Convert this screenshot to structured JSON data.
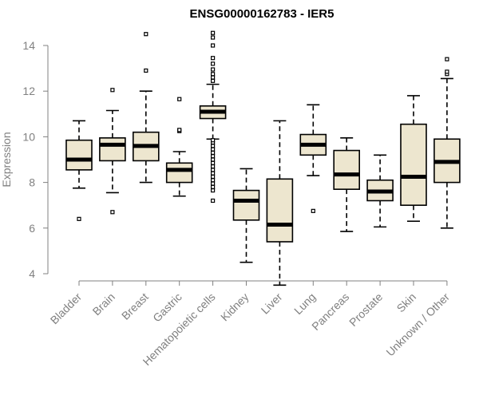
{
  "chart_data": {
    "type": "boxplot",
    "title": "ENSG00000162783 - IER5",
    "ylabel": "Expression",
    "xlabel": "",
    "ylim": [
      3.4,
      14.5
    ],
    "yticks": [
      4,
      6,
      8,
      10,
      12,
      14
    ],
    "box_color": "#ede6cf",
    "categories": [
      "Bladder",
      "Brain",
      "Breast",
      "Gastric",
      "Hematopoietic cells",
      "Kidney",
      "Liver",
      "Lung",
      "Pancreas",
      "Prostate",
      "Skin",
      "Unknown / Other"
    ],
    "boxes": [
      {
        "whisker_low": 7.75,
        "q1": 8.55,
        "median": 9.0,
        "q3": 9.85,
        "whisker_high": 10.7,
        "outliers": [
          6.4
        ]
      },
      {
        "whisker_low": 7.55,
        "q1": 8.95,
        "median": 9.65,
        "q3": 9.95,
        "whisker_high": 11.15,
        "outliers": [
          6.7,
          12.05
        ]
      },
      {
        "whisker_low": 8.0,
        "q1": 8.95,
        "median": 9.6,
        "q3": 10.2,
        "whisker_high": 12.0,
        "outliers": [
          12.9,
          14.5
        ]
      },
      {
        "whisker_low": 7.4,
        "q1": 8.0,
        "median": 8.55,
        "q3": 8.85,
        "whisker_high": 9.35,
        "outliers": [
          10.25,
          10.3,
          11.65
        ]
      },
      {
        "whisker_low": 9.9,
        "q1": 10.8,
        "median": 11.1,
        "q3": 11.35,
        "whisker_high": 12.3,
        "outliers": [
          7.2,
          7.65,
          7.8,
          7.95,
          8.1,
          8.25,
          8.4,
          8.55,
          8.7,
          8.85,
          9.0,
          9.15,
          9.3,
          9.45,
          9.6,
          9.75,
          9.85,
          12.45,
          12.6,
          12.75,
          12.95,
          13.2,
          13.45,
          14.0,
          14.35,
          14.55
        ]
      },
      {
        "whisker_low": 4.5,
        "q1": 6.35,
        "median": 7.2,
        "q3": 7.65,
        "whisker_high": 8.6,
        "outliers": []
      },
      {
        "whisker_low": 3.5,
        "q1": 5.4,
        "median": 6.15,
        "q3": 8.15,
        "whisker_high": 10.7,
        "outliers": []
      },
      {
        "whisker_low": 8.3,
        "q1": 9.2,
        "median": 9.65,
        "q3": 10.1,
        "whisker_high": 11.4,
        "outliers": [
          6.75
        ]
      },
      {
        "whisker_low": 5.85,
        "q1": 7.7,
        "median": 8.35,
        "q3": 9.4,
        "whisker_high": 9.95,
        "outliers": []
      },
      {
        "whisker_low": 6.05,
        "q1": 7.2,
        "median": 7.6,
        "q3": 8.1,
        "whisker_high": 9.2,
        "outliers": []
      },
      {
        "whisker_low": 6.3,
        "q1": 7.0,
        "median": 8.25,
        "q3": 10.55,
        "whisker_high": 11.8,
        "outliers": []
      },
      {
        "whisker_low": 6.0,
        "q1": 8.0,
        "median": 8.9,
        "q3": 9.9,
        "whisker_high": 12.55,
        "outliers": [
          12.75,
          12.85,
          13.4
        ]
      }
    ]
  }
}
